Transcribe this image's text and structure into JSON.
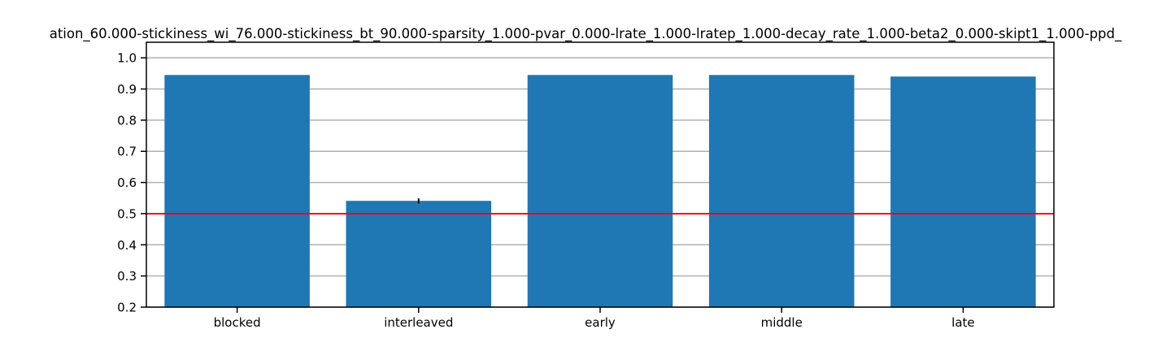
{
  "chart_data": {
    "type": "bar",
    "title": "ation_60.000-stickiness_wi_76.000-stickiness_bt_90.000-sparsity_1.000-pvar_0.000-lrate_1.000-lratep_1.000-decay_rate_1.000-beta2_0.000-skipt1_1.000-ppd_",
    "xlabel": "",
    "ylabel": "",
    "categories": [
      "blocked",
      "interleaved",
      "early",
      "middle",
      "late"
    ],
    "values": [
      0.945,
      0.541,
      0.945,
      0.945,
      0.94
    ],
    "errors": [
      0.0,
      0.008,
      0.0,
      0.0,
      0.0
    ],
    "ylim": [
      0.2,
      1.05
    ],
    "yticks": [
      0.2,
      0.3,
      0.4,
      0.5,
      0.6,
      0.7,
      0.8,
      0.9,
      1.0
    ],
    "ytick_labels": [
      "0.2",
      "0.3",
      "0.4",
      "0.5",
      "0.6",
      "0.7",
      "0.8",
      "0.9",
      "1.0"
    ],
    "reference_line": 0.5,
    "grid": "y",
    "legend": "none",
    "colors": {
      "bar": "#1f77b4",
      "reference_line": "#ff0000",
      "grid": "#b0b0b0",
      "error_bar": "#000000"
    }
  }
}
